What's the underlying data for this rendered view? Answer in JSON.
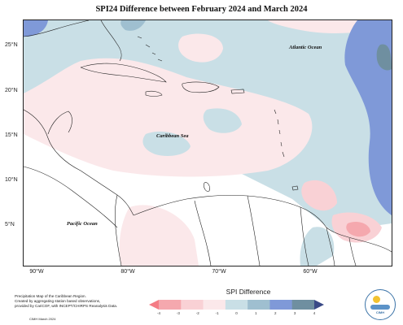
{
  "title": "SPI24 Difference between February 2024 and March 2024",
  "y_axis_labels": [
    "25°N",
    "20°N",
    "15°N",
    "10°N",
    "5°N"
  ],
  "x_axis_labels": [
    "90°W",
    "80°W",
    "70°W",
    "60°W"
  ],
  "ocean_labels": {
    "atlantic": "Atlantic Ocean",
    "caribbean": "Caribbean Sea",
    "pacific": "Pacific Ocean"
  },
  "credit_lines": [
    "Precipitation Map of the Caribbean Region.",
    "Created by aggregating station based observations,",
    "provided by CariCOF, with INCEPT/CHIRPS Reanalysis Data."
  ],
  "credit_footer": "CIMH March 2024",
  "legend": {
    "title": "SPI Difference",
    "ticks": [
      "-4",
      "-3",
      "-2",
      "-1",
      "0",
      "1",
      "2",
      "3",
      "4"
    ],
    "colors": [
      "#f47c85",
      "#f5a8ae",
      "#f9d1d5",
      "#fbe8ea",
      "#c9dfe6",
      "#9fbfd0",
      "#7f99d8",
      "#6f8fa0",
      "#3a4a86"
    ]
  },
  "logo_text": "CIMH"
}
